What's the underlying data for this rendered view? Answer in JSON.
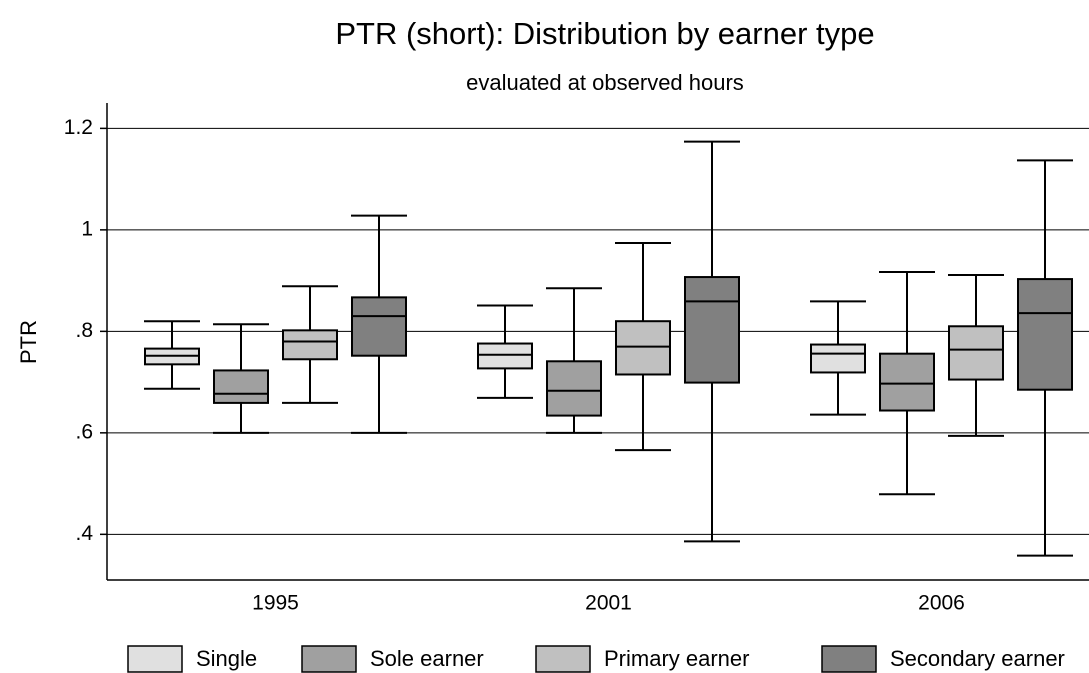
{
  "chart_data": {
    "type": "box",
    "title": "PTR (short): Distribution by earner type",
    "subtitle": "evaluated at observed hours",
    "y_label": "PTR",
    "categories": [
      "1995",
      "2001",
      "2006"
    ],
    "ylim": [
      0.31,
      1.25
    ],
    "yticks": [
      {
        "value": 0.4,
        "label": ".4"
      },
      {
        "value": 0.6,
        "label": ".6"
      },
      {
        "value": 0.8,
        "label": ".8"
      },
      1,
      1.2
    ],
    "grid": true,
    "legend": "bottom",
    "series": [
      {
        "name": "Single",
        "color": "#e0e0e0",
        "values": [
          {
            "min": 0.687,
            "q1": 0.735,
            "median": 0.752,
            "q3": 0.766,
            "max": 0.82
          },
          {
            "min": 0.669,
            "q1": 0.727,
            "median": 0.754,
            "q3": 0.776,
            "max": 0.851
          },
          {
            "min": 0.636,
            "q1": 0.719,
            "median": 0.756,
            "q3": 0.774,
            "max": 0.859
          }
        ]
      },
      {
        "name": "Sole earner",
        "color": "#a0a0a0",
        "values": [
          {
            "min": 0.6,
            "q1": 0.659,
            "median": 0.677,
            "q3": 0.723,
            "max": 0.814
          },
          {
            "min": 0.6,
            "q1": 0.634,
            "median": 0.683,
            "q3": 0.741,
            "max": 0.885
          },
          {
            "min": 0.479,
            "q1": 0.644,
            "median": 0.697,
            "q3": 0.756,
            "max": 0.917
          }
        ]
      },
      {
        "name": "Primary earner",
        "color": "#c0c0c0",
        "values": [
          {
            "min": 0.659,
            "q1": 0.745,
            "median": 0.78,
            "q3": 0.802,
            "max": 0.889
          },
          {
            "min": 0.566,
            "q1": 0.715,
            "median": 0.77,
            "q3": 0.82,
            "max": 0.974
          },
          {
            "min": 0.594,
            "q1": 0.705,
            "median": 0.764,
            "q3": 0.81,
            "max": 0.911
          }
        ]
      },
      {
        "name": "Secondary earner",
        "color": "#808080",
        "values": [
          {
            "min": 0.6,
            "q1": 0.752,
            "median": 0.83,
            "q3": 0.867,
            "max": 1.028
          },
          {
            "min": 0.386,
            "q1": 0.699,
            "median": 0.859,
            "q3": 0.907,
            "max": 1.174
          },
          {
            "min": 0.358,
            "q1": 0.685,
            "median": 0.836,
            "q3": 0.903,
            "max": 1.137
          }
        ]
      }
    ]
  }
}
